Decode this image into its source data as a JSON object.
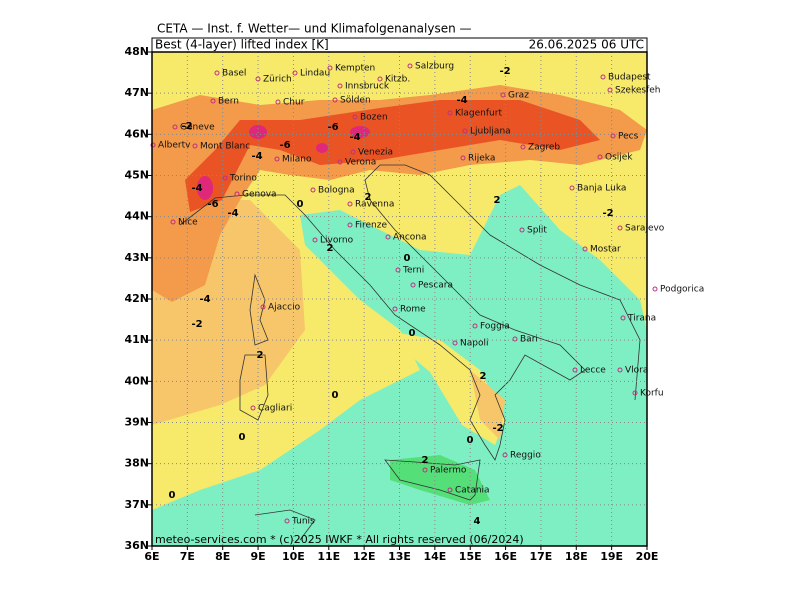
{
  "header": {
    "institute": "CETA — Inst. f. Wetter— und Klimafolgenanalysen —",
    "field": "Best (4-layer) lifted index [K]",
    "valid_time": "26.06.2025 06 UTC"
  },
  "footer": "meteo-services.com * (c)2025 IWKF * All rights reserved (06/2024)",
  "map": {
    "lon_ticks": [
      {
        "value": 6,
        "label": "6E"
      },
      {
        "value": 7,
        "label": "7E"
      },
      {
        "value": 8,
        "label": "8E"
      },
      {
        "value": 9,
        "label": "9E"
      },
      {
        "value": 10,
        "label": "10E"
      },
      {
        "value": 11,
        "label": "11E"
      },
      {
        "value": 12,
        "label": "12E"
      },
      {
        "value": 13,
        "label": "13E"
      },
      {
        "value": 14,
        "label": "14E"
      },
      {
        "value": 15,
        "label": "15E"
      },
      {
        "value": 16,
        "label": "16E"
      },
      {
        "value": 17,
        "label": "17E"
      },
      {
        "value": 18,
        "label": "18E"
      },
      {
        "value": 19,
        "label": "19E"
      },
      {
        "value": 20,
        "label": "20E"
      }
    ],
    "lat_ticks": [
      {
        "value": 36,
        "label": "36N"
      },
      {
        "value": 37,
        "label": "37N"
      },
      {
        "value": 38,
        "label": "38N"
      },
      {
        "value": 39,
        "label": "39N"
      },
      {
        "value": 40,
        "label": "40N"
      },
      {
        "value": 41,
        "label": "41N"
      },
      {
        "value": 42,
        "label": "42N"
      },
      {
        "value": 43,
        "label": "43N"
      },
      {
        "value": 44,
        "label": "44N"
      },
      {
        "value": 45,
        "label": "45N"
      },
      {
        "value": 46,
        "label": "46N"
      },
      {
        "value": 47,
        "label": "47N"
      },
      {
        "value": 48,
        "label": "48N"
      }
    ],
    "cities": [
      "Basel",
      "Zürich",
      "Lindau",
      "Kempten",
      "Salzburg",
      "Kitzb.",
      "Innsbruck",
      "Bern",
      "Chur",
      "Sölden",
      "Budapest",
      "Szekesfeh",
      "Graz",
      "Klagenfurt",
      "Ljubljana",
      "Zagreb",
      "Pecs",
      "Osijek",
      "Bozen",
      "Geneve",
      "Albertv",
      "Mont Blanc",
      "Milano",
      "Verona",
      "Venezia",
      "Rijeka",
      "Torino",
      "Genova",
      "Bologna",
      "Ravenna",
      "Banja Luka",
      "Nice",
      "Firenze",
      "Ancona",
      "Split",
      "Sarajevo",
      "Mostar",
      "Livorno",
      "Terni",
      "Pescara",
      "Podgorica",
      "Ajaccio",
      "Rome",
      "Foggia",
      "Tirana",
      "Napoli",
      "Bari",
      "Lecce",
      "Vlora",
      "Cagliari",
      "Korfu",
      "Reggio",
      "Palermo",
      "Catania",
      "Tunis"
    ],
    "contour_labels": [
      -2,
      -4,
      -6,
      -4,
      -6,
      -2,
      -4,
      -4,
      -6,
      -4,
      0,
      2,
      2,
      -2,
      2,
      0,
      -4,
      -2,
      0,
      2,
      2,
      0,
      0,
      -2,
      0,
      2,
      0,
      4
    ]
  }
}
